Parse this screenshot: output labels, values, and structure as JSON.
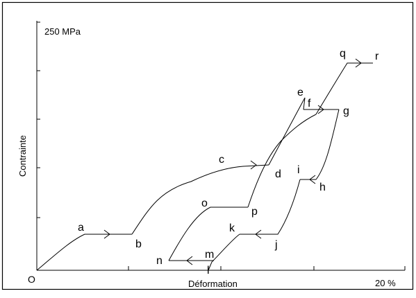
{
  "diagram": {
    "stress_label": "250 MPa",
    "strain_label": "20 %",
    "origin_label": "O",
    "x_axis_title": "Déformation",
    "y_axis_title": "Contrainte"
  },
  "points": [
    {
      "id": "a",
      "label": "a"
    },
    {
      "id": "b",
      "label": "b"
    },
    {
      "id": "c",
      "label": "c"
    },
    {
      "id": "d",
      "label": "d"
    },
    {
      "id": "e",
      "label": "e"
    },
    {
      "id": "f",
      "label": "f"
    },
    {
      "id": "g",
      "label": "g"
    },
    {
      "id": "h",
      "label": "h"
    },
    {
      "id": "i",
      "label": "i"
    },
    {
      "id": "j",
      "label": "j"
    },
    {
      "id": "k",
      "label": "k"
    },
    {
      "id": "l",
      "label": "l"
    },
    {
      "id": "m",
      "label": "m"
    },
    {
      "id": "n",
      "label": "n"
    },
    {
      "id": "o",
      "label": "o"
    },
    {
      "id": "p",
      "label": "p"
    },
    {
      "id": "q",
      "label": "q"
    },
    {
      "id": "r",
      "label": "r"
    }
  ]
}
